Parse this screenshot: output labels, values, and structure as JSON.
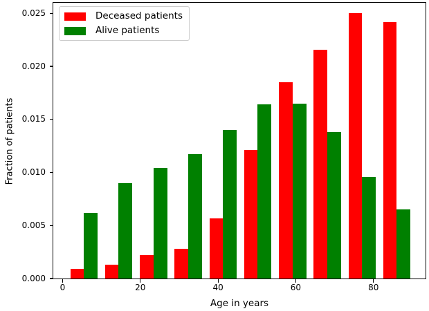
{
  "figure": {
    "background": "#ffffff",
    "text_color": "#000000"
  },
  "chart_data": {
    "type": "bar",
    "title": "",
    "xlabel": "Age in years",
    "ylabel": "Fraction of patients",
    "bin_centers": [
      5.5,
      14.4,
      23.4,
      32.3,
      41.3,
      50.2,
      59.2,
      68.1,
      77.1,
      86.0
    ],
    "series": [
      {
        "name": "Deceased patients",
        "color": "#ff0000",
        "values": [
          0.0009,
          0.0013,
          0.0022,
          0.0028,
          0.0057,
          0.0121,
          0.0185,
          0.0216,
          0.025,
          0.0242
        ]
      },
      {
        "name": "Alive patients",
        "color": "#008000",
        "values": [
          0.0062,
          0.009,
          0.0104,
          0.0117,
          0.014,
          0.0164,
          0.0165,
          0.0138,
          0.0096,
          0.0065
        ]
      }
    ],
    "xlim": [
      -2.4,
      93.4
    ],
    "ylim": [
      0,
      0.026
    ],
    "bar_width_years": 3.5,
    "x_ticks": {
      "values": [
        0,
        20,
        40,
        60,
        80
      ],
      "labels": [
        "0",
        "20",
        "40",
        "60",
        "80"
      ]
    },
    "y_ticks": {
      "values": [
        0,
        0.005,
        0.01,
        0.015,
        0.02,
        0.025
      ],
      "labels": [
        "0.000",
        "0.005",
        "0.010",
        "0.015",
        "0.020",
        "0.025"
      ]
    },
    "legend": {
      "position": "upper left",
      "entries": [
        "Deceased patients",
        "Alive patients"
      ]
    },
    "grid": false
  }
}
